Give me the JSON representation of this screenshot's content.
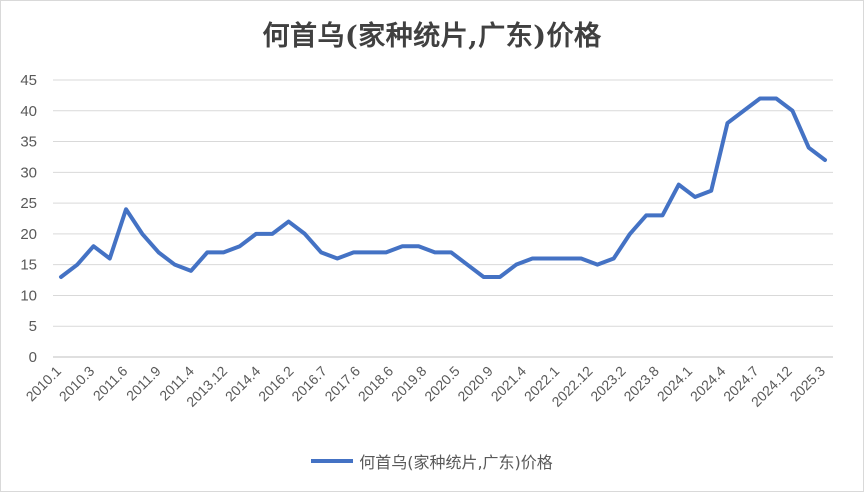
{
  "chart_data": {
    "type": "line",
    "title": "何首乌(家种统片,广东)价格",
    "xlabel": "",
    "ylabel": "",
    "ylim": [
      0,
      45
    ],
    "ystep": 5,
    "grid": true,
    "legend": "bottom",
    "x_tick_labels": [
      "2010.1",
      "2010.3",
      "2011.6",
      "2011.9",
      "2011.4",
      "2013.12",
      "2014.4",
      "2016.2",
      "2016.7",
      "2017.6",
      "2018.6",
      "2019.8",
      "2020.5",
      "2020.9",
      "2021.4",
      "2022.1",
      "2022.12",
      "2023.2",
      "2023.8",
      "2024.1",
      "2024.4",
      "2024.7",
      "2024.12",
      "2025.3"
    ],
    "series": [
      {
        "name": "何首乌(家种统片,广东)价格",
        "color": "#4472c4",
        "values": [
          13,
          15,
          18,
          16,
          24,
          20,
          17,
          15,
          14,
          17,
          17,
          18,
          20,
          20,
          22,
          20,
          17,
          16,
          17,
          17,
          17,
          18,
          18,
          17,
          17,
          15,
          13,
          13,
          15,
          16,
          16,
          16,
          16,
          15,
          16,
          20,
          23,
          23,
          28,
          26,
          27,
          38,
          40,
          42,
          42,
          40,
          34,
          32
        ]
      }
    ]
  }
}
